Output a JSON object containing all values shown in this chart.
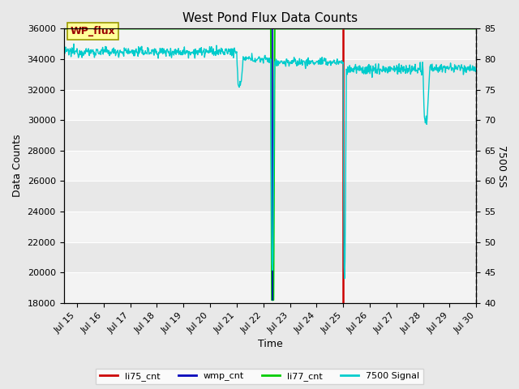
{
  "title": "West Pond Flux Data Counts",
  "xlabel": "Time",
  "ylabel_left": "Data Counts",
  "ylabel_right": "7500 SS",
  "ylim_left": [
    18000,
    36000
  ],
  "ylim_right": [
    40,
    85
  ],
  "yticks_left": [
    18000,
    20000,
    22000,
    24000,
    26000,
    28000,
    30000,
    32000,
    34000,
    36000
  ],
  "yticks_right": [
    40,
    45,
    50,
    55,
    60,
    65,
    70,
    75,
    80,
    85
  ],
  "xlim": [
    14.5,
    30.0
  ],
  "xtick_labels": [
    "Jul 15",
    "Jul 16",
    "Jul 17",
    "Jul 18",
    "Jul 19",
    "Jul 20",
    "Jul 21",
    "Jul 22",
    "Jul 23",
    "Jul 24",
    "Jul 25",
    "Jul 26",
    "Jul 27",
    "Jul 28",
    "Jul 29",
    "Jul 30"
  ],
  "xtick_positions": [
    15,
    16,
    17,
    18,
    19,
    20,
    21,
    22,
    23,
    24,
    25,
    26,
    27,
    28,
    29,
    30
  ],
  "wmp_cnt_color": "#0000bb",
  "li75_cnt_color": "#cc0000",
  "li77_cnt_color": "#00cc00",
  "signal_color": "#00cccc",
  "background_color": "#e8e8e8",
  "plot_bg_color": "#e8e8e8",
  "grid_color": "#ffffff",
  "annotation_box_color": "#ffff99",
  "annotation_text": "WP_flux",
  "annotation_text_color": "#990000",
  "annotation_box_edge_color": "#999900",
  "fig_facecolor": "#e8e8e8",
  "title_fontsize": 11,
  "axis_label_fontsize": 9,
  "tick_fontsize": 8,
  "legend_fontsize": 8
}
